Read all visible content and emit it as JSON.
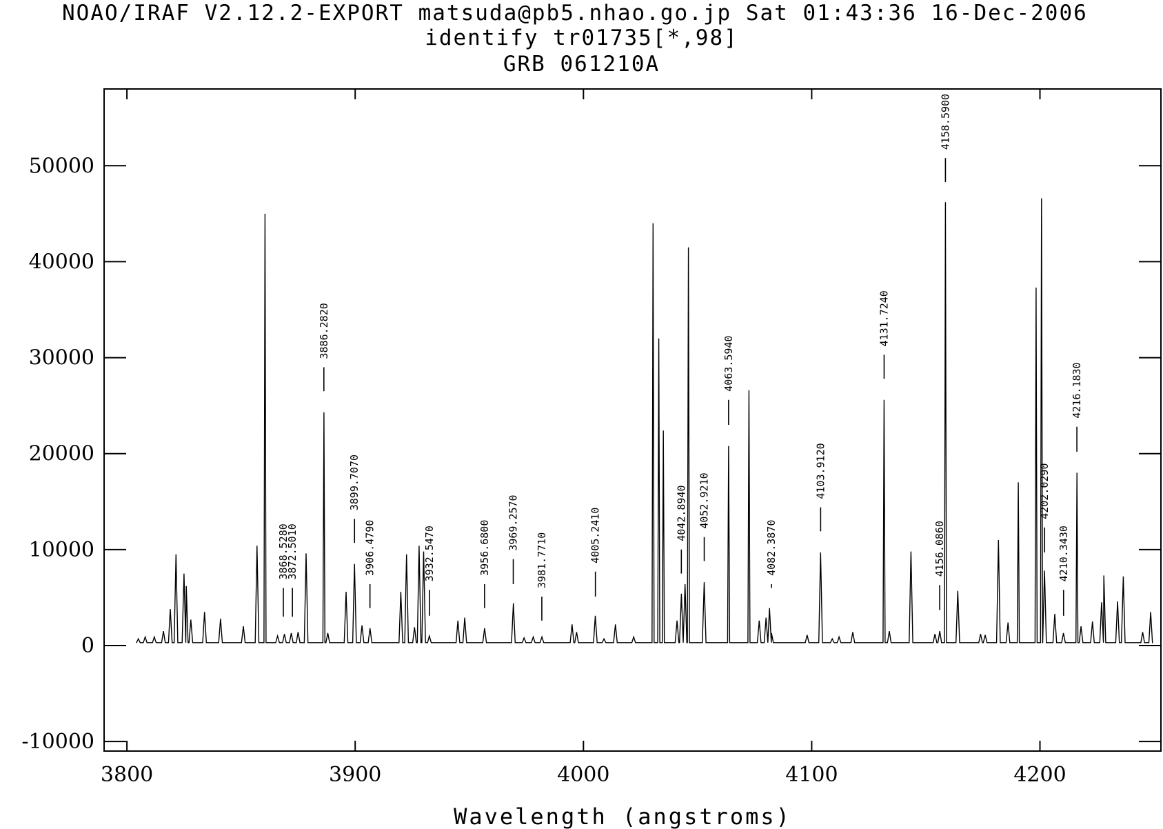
{
  "header": {
    "line1": "NOAO/IRAF V2.12.2-EXPORT matsuda@pb5.nhao.go.jp Sat 01:43:36 16-Dec-2006",
    "line2": "identify tr01735[*,98]",
    "line3": "GRB 061210A"
  },
  "chart_data": {
    "type": "line",
    "title": "GRB 061210A",
    "xlabel": "Wavelength (angstroms)",
    "ylabel": "",
    "xlim": [
      3790,
      4253
    ],
    "ylim": [
      -11000,
      58000
    ],
    "xticks": [
      3800,
      3900,
      4000,
      4100,
      4200
    ],
    "yticks": [
      -10000,
      0,
      10000,
      20000,
      30000,
      40000,
      50000
    ],
    "grid": false,
    "baseline": 300,
    "peaks": [
      {
        "x": 3805,
        "y": 700
      },
      {
        "x": 3808,
        "y": 900
      },
      {
        "x": 3812,
        "y": 900
      },
      {
        "x": 3816,
        "y": 1500
      },
      {
        "x": 3819,
        "y": 3800
      },
      {
        "x": 3821.5,
        "y": 9500
      },
      {
        "x": 3825,
        "y": 7500
      },
      {
        "x": 3826,
        "y": 6200
      },
      {
        "x": 3828,
        "y": 2700
      },
      {
        "x": 3834,
        "y": 3500
      },
      {
        "x": 3841,
        "y": 2800
      },
      {
        "x": 3851,
        "y": 2000
      },
      {
        "x": 3857,
        "y": 10400
      },
      {
        "x": 3860.5,
        "y": 45000
      },
      {
        "x": 3866,
        "y": 1000
      },
      {
        "x": 3869,
        "y": 1200
      },
      {
        "x": 3872,
        "y": 1300
      },
      {
        "x": 3875,
        "y": 1400
      },
      {
        "x": 3878.5,
        "y": 9600
      },
      {
        "x": 3886.3,
        "y": 24300
      },
      {
        "x": 3888,
        "y": 1300
      },
      {
        "x": 3896,
        "y": 5600
      },
      {
        "x": 3899.7,
        "y": 8500
      },
      {
        "x": 3903,
        "y": 2100
      },
      {
        "x": 3906.5,
        "y": 1800
      },
      {
        "x": 3920,
        "y": 5600
      },
      {
        "x": 3922.5,
        "y": 9500
      },
      {
        "x": 3926,
        "y": 1900
      },
      {
        "x": 3928,
        "y": 10400
      },
      {
        "x": 3930,
        "y": 9800
      },
      {
        "x": 3932.5,
        "y": 1000
      },
      {
        "x": 3945,
        "y": 2600
      },
      {
        "x": 3948,
        "y": 2900
      },
      {
        "x": 3956.7,
        "y": 1800
      },
      {
        "x": 3969.3,
        "y": 4400
      },
      {
        "x": 3974,
        "y": 800
      },
      {
        "x": 3978,
        "y": 900
      },
      {
        "x": 3981.8,
        "y": 900
      },
      {
        "x": 3995,
        "y": 2200
      },
      {
        "x": 3997,
        "y": 1400
      },
      {
        "x": 4005.2,
        "y": 3100
      },
      {
        "x": 4009,
        "y": 700
      },
      {
        "x": 4014,
        "y": 2200
      },
      {
        "x": 4022,
        "y": 900
      },
      {
        "x": 4030.5,
        "y": 44000
      },
      {
        "x": 4033,
        "y": 32000
      },
      {
        "x": 4035,
        "y": 22400
      },
      {
        "x": 4041,
        "y": 2600
      },
      {
        "x": 4042.9,
        "y": 5400
      },
      {
        "x": 4044.5,
        "y": 6400
      },
      {
        "x": 4046,
        "y": 41500
      },
      {
        "x": 4052.9,
        "y": 6600
      },
      {
        "x": 4063.6,
        "y": 20800
      },
      {
        "x": 4072.5,
        "y": 26600
      },
      {
        "x": 4077,
        "y": 2600
      },
      {
        "x": 4080,
        "y": 2900
      },
      {
        "x": 4081.5,
        "y": 3900
      },
      {
        "x": 4082.4,
        "y": 1300
      },
      {
        "x": 4098,
        "y": 1100
      },
      {
        "x": 4103.9,
        "y": 9700
      },
      {
        "x": 4109,
        "y": 700
      },
      {
        "x": 4112,
        "y": 900
      },
      {
        "x": 4118,
        "y": 1400
      },
      {
        "x": 4131.7,
        "y": 25600
      },
      {
        "x": 4134,
        "y": 1500
      },
      {
        "x": 4143.5,
        "y": 9800
      },
      {
        "x": 4154,
        "y": 1200
      },
      {
        "x": 4156.1,
        "y": 1500
      },
      {
        "x": 4158.6,
        "y": 46200
      },
      {
        "x": 4164,
        "y": 5700
      },
      {
        "x": 4174,
        "y": 1200
      },
      {
        "x": 4176,
        "y": 1100
      },
      {
        "x": 4181.8,
        "y": 11000
      },
      {
        "x": 4186,
        "y": 2400
      },
      {
        "x": 4190.5,
        "y": 17000
      },
      {
        "x": 4198.3,
        "y": 37300
      },
      {
        "x": 4200.7,
        "y": 46600
      },
      {
        "x": 4202,
        "y": 7800
      },
      {
        "x": 4206.5,
        "y": 3300
      },
      {
        "x": 4210.3,
        "y": 1300
      },
      {
        "x": 4216.2,
        "y": 18000
      },
      {
        "x": 4218,
        "y": 2000
      },
      {
        "x": 4223,
        "y": 2500
      },
      {
        "x": 4227,
        "y": 4500
      },
      {
        "x": 4228,
        "y": 7300
      },
      {
        "x": 4234,
        "y": 4600
      },
      {
        "x": 4236.5,
        "y": 7200
      },
      {
        "x": 4245,
        "y": 1400
      },
      {
        "x": 4248.5,
        "y": 3500
      }
    ],
    "identified_lines": [
      {
        "label": "3868.5280",
        "x": 3868.528,
        "y_low": 3000,
        "y_high": 6000
      },
      {
        "label": "3872.5010",
        "x": 3872.501,
        "y_low": 3000,
        "y_high": 6000
      },
      {
        "label": "3886.2820",
        "x": 3886.282,
        "y_low": 26500,
        "y_high": 29000
      },
      {
        "label": "3899.7070",
        "x": 3899.707,
        "y_low": 10700,
        "y_high": 13200
      },
      {
        "label": "3906.4790",
        "x": 3906.479,
        "y_low": 3900,
        "y_high": 6400
      },
      {
        "label": "3932.5470",
        "x": 3932.547,
        "y_low": 3100,
        "y_high": 5800
      },
      {
        "label": "3956.6800",
        "x": 3956.68,
        "y_low": 3900,
        "y_high": 6400
      },
      {
        "label": "3969.2570",
        "x": 3969.257,
        "y_low": 6400,
        "y_high": 9000
      },
      {
        "label": "3981.7710",
        "x": 3981.771,
        "y_low": 2600,
        "y_high": 5100
      },
      {
        "label": "4005.2410",
        "x": 4005.241,
        "y_low": 5100,
        "y_high": 7700
      },
      {
        "label": "4042.8940",
        "x": 4042.894,
        "y_low": 7500,
        "y_high": 10000
      },
      {
        "label": "4052.9210",
        "x": 4052.921,
        "y_low": 8800,
        "y_high": 11300
      },
      {
        "label": "4063.5940",
        "x": 4063.594,
        "y_low": 23000,
        "y_high": 25600
      },
      {
        "label": "4082.3870",
        "x": 4082.387,
        "y_low": 6000,
        "y_high": 6400
      },
      {
        "label": "4103.9120",
        "x": 4103.912,
        "y_low": 11900,
        "y_high": 14400
      },
      {
        "label": "4131.7240",
        "x": 4131.724,
        "y_low": 27800,
        "y_high": 30300
      },
      {
        "label": "4156.0860",
        "x": 4156.086,
        "y_low": 3700,
        "y_high": 6300
      },
      {
        "label": "4158.5900",
        "x": 4158.59,
        "y_low": 48300,
        "y_high": 50800
      },
      {
        "label": "4202.0290",
        "x": 4202.029,
        "y_low": 9700,
        "y_high": 12300
      },
      {
        "label": "4210.3430",
        "x": 4210.343,
        "y_low": 3100,
        "y_high": 5800
      },
      {
        "label": "4216.1830",
        "x": 4216.183,
        "y_low": 20200,
        "y_high": 22800
      }
    ]
  }
}
